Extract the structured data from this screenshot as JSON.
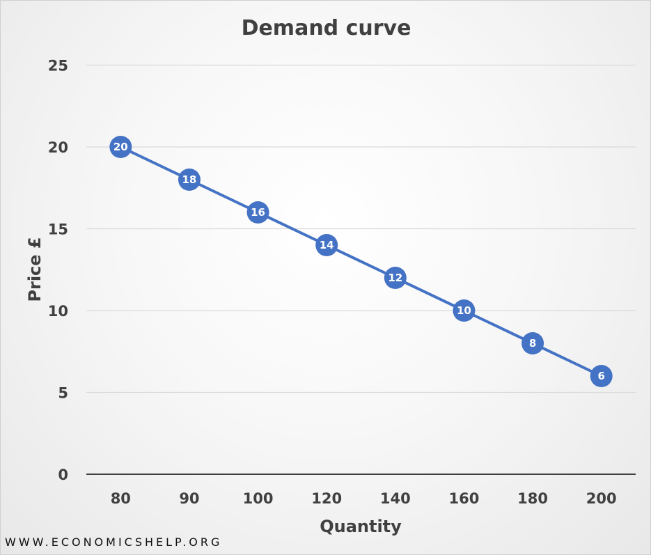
{
  "chart_data": {
    "type": "line",
    "title": "Demand curve",
    "xlabel": "Quantity",
    "ylabel": "Price £",
    "categories": [
      "80",
      "90",
      "100",
      "120",
      "140",
      "160",
      "180",
      "200"
    ],
    "series": [
      {
        "values": [
          20,
          18,
          16,
          14,
          12,
          10,
          8,
          6
        ]
      }
    ],
    "ylim": [
      0,
      25
    ],
    "yticks": [
      0,
      5,
      10,
      15,
      20,
      25
    ],
    "grid": true,
    "legend": "none",
    "data_labels": true,
    "colors": {
      "line": "#4472C4",
      "grid": "#d9d9d9",
      "axis": "#404040"
    }
  },
  "watermark": "WWW.ECONOMICSHELP.ORG"
}
